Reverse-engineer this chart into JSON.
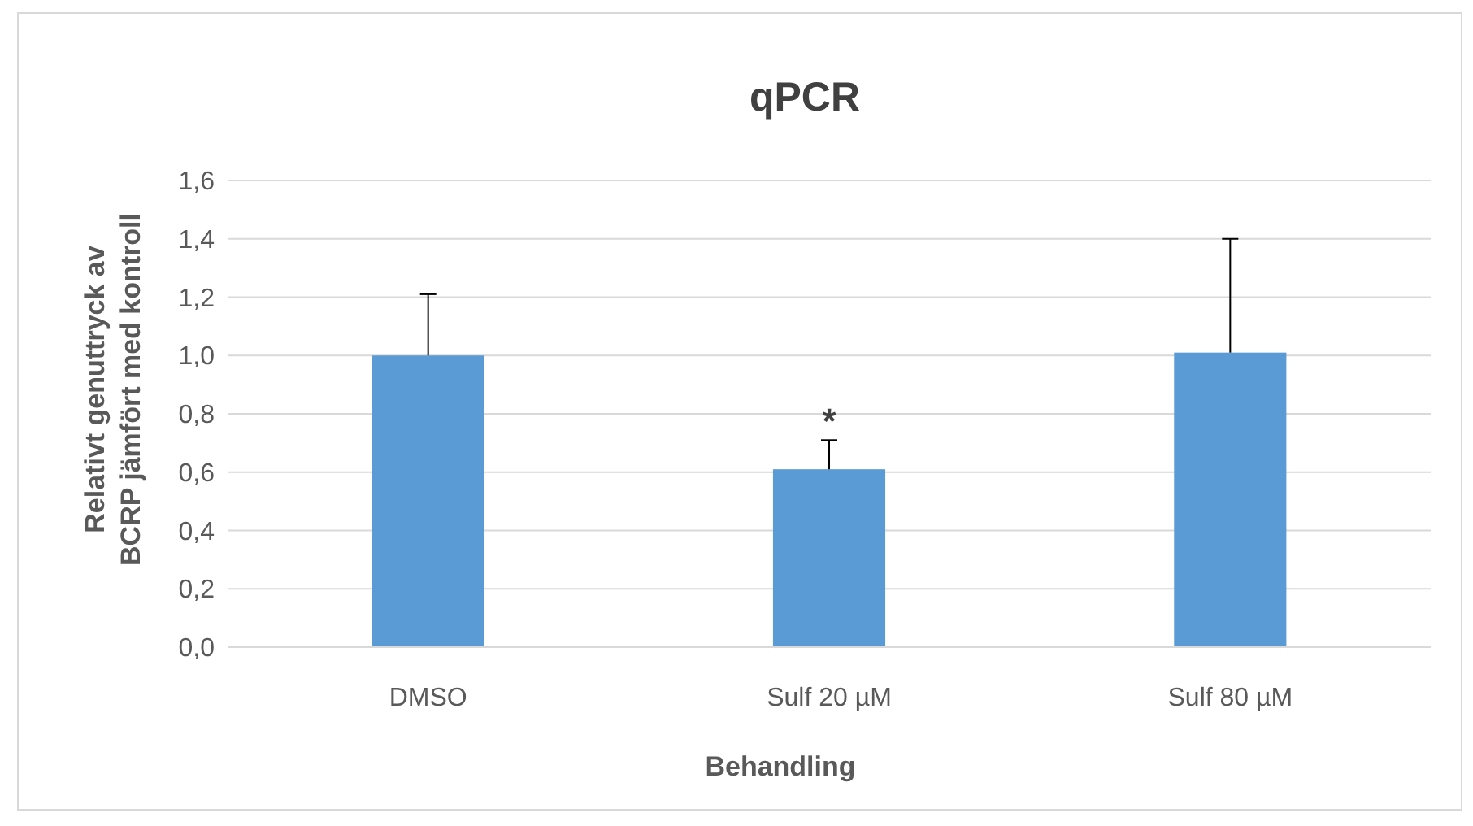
{
  "chart_data": {
    "type": "bar",
    "title": "qPCR",
    "xlabel": "Behandling",
    "ylabel": "Relativt genuttryck av BCRP jämfört med kontroll",
    "categories": [
      "DMSO",
      "Sulf 20 µM",
      "Sulf 80 µM"
    ],
    "values": [
      1.0,
      0.61,
      1.01
    ],
    "color": "#5b9bd5",
    "errors": [
      [
        1.0,
        1.21
      ],
      [
        0.61,
        0.71
      ],
      [
        1.01,
        1.4
      ]
    ],
    "ylim": [
      0,
      1.6
    ],
    "yticks": [
      {
        "value": 0,
        "label": "0,0"
      },
      {
        "value": 0.2,
        "label": "0,2"
      },
      {
        "value": 0.4,
        "label": "0,4"
      },
      {
        "value": 0.6,
        "label": "0,6"
      },
      {
        "value": 0.8,
        "label": "0,8"
      },
      {
        "value": 1.0,
        "label": "1,0"
      },
      {
        "value": 1.2,
        "label": "1,2"
      },
      {
        "value": 1.4,
        "label": "1,4"
      },
      {
        "value": 1.6,
        "label": "1,6"
      }
    ],
    "grid": "y",
    "annotations": [
      {
        "text": "*",
        "x": "Sulf 20 µM",
        "y": 0.71
      }
    ]
  }
}
